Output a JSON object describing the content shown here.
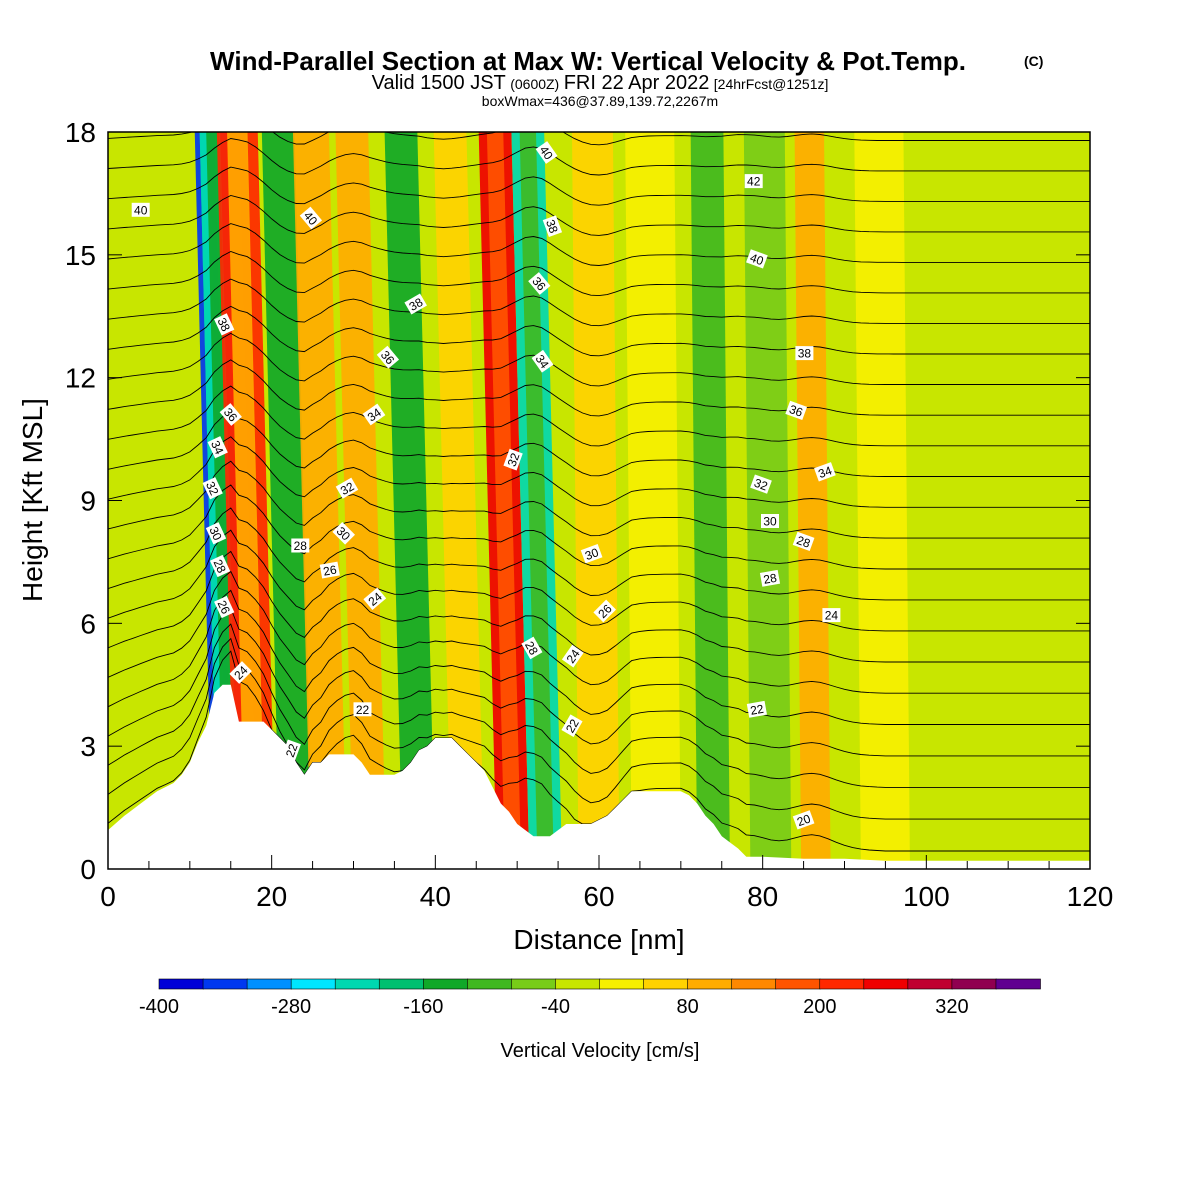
{
  "title": "Wind-Parallel Section at Max W: Vertical Velocity & Pot.Temp.",
  "title_mark": "(C)",
  "subtitle": {
    "valid": "Valid 1500 JST",
    "utc": "(0600Z)",
    "date": "FRI 22 Apr 2022",
    "fcst": "[24hrFcst@1251z]"
  },
  "box_info": "boxWmax=436@37.89,139.72,2267m",
  "chart_data": {
    "type": "heatmap",
    "xlabel": "Distance [nm]",
    "ylabel": "Height [Kft MSL]",
    "xlim": [
      0,
      120
    ],
    "ylim": [
      0,
      18
    ],
    "xticks": [
      "0",
      "20",
      "40",
      "60",
      "80",
      "100",
      "120"
    ],
    "yticks": [
      "0",
      "3",
      "6",
      "9",
      "12",
      "15",
      "18"
    ],
    "colorbar": {
      "label": "Vertical Velocity [cm/s]",
      "tick_labels": [
        "-400",
        "-280",
        "-160",
        "-40",
        "80",
        "200",
        "320"
      ],
      "levels": [
        -400,
        -360,
        -320,
        -280,
        -240,
        -200,
        -160,
        -120,
        -80,
        -40,
        0,
        40,
        80,
        120,
        160,
        200,
        240,
        280,
        320,
        360,
        400
      ],
      "colors": [
        "#0000d8",
        "#0038f0",
        "#0090ff",
        "#00e6ff",
        "#00d8b0",
        "#00c070",
        "#10a828",
        "#40b820",
        "#78cc18",
        "#c8e600",
        "#f6f000",
        "#ffd200",
        "#ffac00",
        "#ff8800",
        "#ff5400",
        "#ff2800",
        "#f00000",
        "#c00030",
        "#900050",
        "#600090"
      ]
    },
    "vertical_velocity_bands": [
      {
        "x": 14,
        "w": 1.2,
        "value": -330
      },
      {
        "x": 15,
        "w": 1.6,
        "value": -230
      },
      {
        "x": 17.5,
        "w": 1.6,
        "value": 330
      },
      {
        "x": 18,
        "w": 2.5,
        "value": 200
      },
      {
        "x": 23,
        "w": 2.0,
        "value": -150
      },
      {
        "x": 27,
        "w": 2.2,
        "value": 90
      },
      {
        "x": 32,
        "w": 2.0,
        "value": 95
      },
      {
        "x": 38,
        "w": 2.0,
        "value": -130
      },
      {
        "x": 44,
        "w": 2.0,
        "value": 60
      },
      {
        "x": 49.5,
        "w": 2.0,
        "value": 260
      },
      {
        "x": 53.5,
        "w": 2.0,
        "value": -210
      },
      {
        "x": 60,
        "w": 2.5,
        "value": 40
      },
      {
        "x": 67,
        "w": 3.0,
        "value": 25
      },
      {
        "x": 74,
        "w": 2.0,
        "value": -90
      },
      {
        "x": 81,
        "w": 2.5,
        "value": -70
      },
      {
        "x": 86.5,
        "w": 1.8,
        "value": 80
      },
      {
        "x": 95,
        "w": 3.0,
        "value": 20
      },
      {
        "x": 106,
        "w": 4.0,
        "value": -30
      },
      {
        "x": 116,
        "w": 3.0,
        "value": -40
      }
    ],
    "terrain": {
      "x": [
        0,
        2,
        4,
        6,
        8,
        9,
        10,
        11,
        12,
        13,
        14,
        15,
        16,
        17,
        18,
        19,
        20,
        21,
        22,
        23,
        24,
        25,
        26,
        27,
        28,
        29,
        30,
        31,
        32,
        33,
        34,
        35,
        36,
        37,
        38,
        39,
        40,
        41,
        42,
        43,
        44,
        45,
        46,
        47,
        48,
        49,
        50,
        51,
        52,
        53,
        54,
        55,
        56,
        57,
        58,
        59,
        60,
        61,
        62,
        63,
        64,
        65,
        66,
        67,
        68,
        69,
        70,
        71,
        72,
        73,
        74,
        75,
        76,
        77,
        78,
        80,
        85,
        90,
        95,
        100,
        110,
        120
      ],
      "height": [
        0.95,
        1.3,
        1.6,
        1.9,
        2.1,
        2.3,
        2.6,
        3.1,
        3.5,
        4.3,
        4.5,
        4.5,
        3.6,
        3.6,
        3.6,
        3.6,
        3.4,
        3.2,
        3.0,
        2.6,
        2.3,
        2.6,
        2.6,
        2.8,
        2.8,
        2.8,
        2.8,
        2.6,
        2.3,
        2.3,
        2.3,
        2.3,
        2.4,
        2.6,
        2.9,
        3.0,
        3.2,
        3.2,
        3.2,
        3.0,
        2.8,
        2.6,
        2.4,
        2.0,
        1.6,
        1.4,
        1.1,
        0.95,
        0.8,
        0.8,
        0.8,
        0.95,
        1.1,
        1.1,
        1.1,
        1.1,
        1.2,
        1.3,
        1.5,
        1.7,
        1.9,
        1.9,
        1.9,
        1.9,
        1.9,
        1.9,
        1.9,
        1.8,
        1.6,
        1.3,
        1.1,
        0.8,
        0.65,
        0.5,
        0.3,
        0.3,
        0.25,
        0.25,
        0.2,
        0.2,
        0.2,
        0.2
      ]
    },
    "theta_contours": [
      {
        "levels": [
          20,
          21,
          22,
          23,
          24,
          25,
          26,
          27,
          28,
          29,
          30,
          31,
          32,
          33,
          34,
          35,
          36,
          37,
          38,
          39,
          40,
          41,
          42,
          43
        ]
      }
    ],
    "contour_labels": [
      {
        "text": "40",
        "x": 4,
        "y": 16.1,
        "angle": 0
      },
      {
        "text": "38",
        "x": 14.2,
        "y": 13.3,
        "angle": 65
      },
      {
        "text": "36",
        "x": 15,
        "y": 11.1,
        "angle": 50
      },
      {
        "text": "34",
        "x": 13.4,
        "y": 10.3,
        "angle": 65
      },
      {
        "text": "32",
        "x": 12.8,
        "y": 9.3,
        "angle": 65
      },
      {
        "text": "30",
        "x": 13.2,
        "y": 8.2,
        "angle": 65
      },
      {
        "text": "28",
        "x": 13.7,
        "y": 7.4,
        "angle": 65
      },
      {
        "text": "26",
        "x": 14.2,
        "y": 6.4,
        "angle": 65
      },
      {
        "text": "24",
        "x": 16.2,
        "y": 4.8,
        "angle": -45
      },
      {
        "text": "40",
        "x": 24.8,
        "y": 15.9,
        "angle": 50
      },
      {
        "text": "38",
        "x": 37.6,
        "y": 13.8,
        "angle": -30
      },
      {
        "text": "36",
        "x": 34.2,
        "y": 12.5,
        "angle": 50
      },
      {
        "text": "34",
        "x": 32.5,
        "y": 11.1,
        "angle": -35
      },
      {
        "text": "32",
        "x": 29.2,
        "y": 9.3,
        "angle": -30
      },
      {
        "text": "30",
        "x": 28.8,
        "y": 8.2,
        "angle": 45
      },
      {
        "text": "28",
        "x": 23.5,
        "y": 7.9,
        "angle": 0
      },
      {
        "text": "26",
        "x": 27.1,
        "y": 7.3,
        "angle": -10
      },
      {
        "text": "24",
        "x": 32.6,
        "y": 6.6,
        "angle": -40
      },
      {
        "text": "22",
        "x": 31.1,
        "y": 3.9,
        "angle": 0
      },
      {
        "text": "22",
        "x": 22.4,
        "y": 2.9,
        "angle": -70
      },
      {
        "text": "40",
        "x": 53.6,
        "y": 17.5,
        "angle": 55
      },
      {
        "text": "38",
        "x": 54.3,
        "y": 15.7,
        "angle": 70
      },
      {
        "text": "36",
        "x": 52.7,
        "y": 14.3,
        "angle": 50
      },
      {
        "text": "34",
        "x": 53.1,
        "y": 12.4,
        "angle": 55
      },
      {
        "text": "32",
        "x": 49.5,
        "y": 10.0,
        "angle": -70
      },
      {
        "text": "30",
        "x": 59.1,
        "y": 7.7,
        "angle": -20
      },
      {
        "text": "28",
        "x": 51.8,
        "y": 5.4,
        "angle": 60
      },
      {
        "text": "26",
        "x": 60.7,
        "y": 6.3,
        "angle": -45
      },
      {
        "text": "24",
        "x": 56.8,
        "y": 5.2,
        "angle": -55
      },
      {
        "text": "22",
        "x": 56.7,
        "y": 3.5,
        "angle": -60
      },
      {
        "text": "42",
        "x": 78.9,
        "y": 16.8,
        "angle": 0
      },
      {
        "text": "40",
        "x": 79.3,
        "y": 14.9,
        "angle": 20
      },
      {
        "text": "38",
        "x": 85.1,
        "y": 12.6,
        "angle": 0
      },
      {
        "text": "36",
        "x": 84.1,
        "y": 11.2,
        "angle": 20
      },
      {
        "text": "34",
        "x": 87.6,
        "y": 9.7,
        "angle": -20
      },
      {
        "text": "32",
        "x": 79.8,
        "y": 9.4,
        "angle": 20
      },
      {
        "text": "30",
        "x": 80.9,
        "y": 8.5,
        "angle": 0
      },
      {
        "text": "28",
        "x": 85,
        "y": 8.0,
        "angle": 20
      },
      {
        "text": "28",
        "x": 80.9,
        "y": 7.1,
        "angle": -10
      },
      {
        "text": "24",
        "x": 88.4,
        "y": 6.2,
        "angle": 0
      },
      {
        "text": "22",
        "x": 79.3,
        "y": 3.9,
        "angle": -10
      },
      {
        "text": "20",
        "x": 85,
        "y": 1.2,
        "angle": -20
      }
    ]
  }
}
